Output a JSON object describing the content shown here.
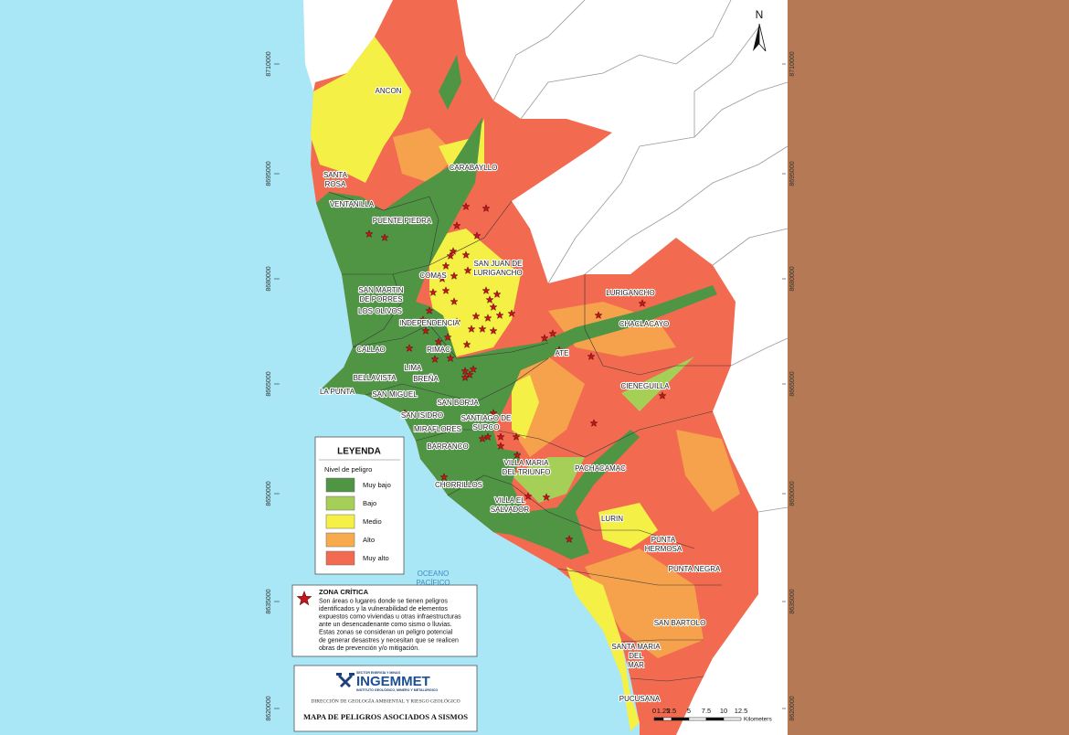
{
  "map": {
    "districts": [
      {
        "lines": [
          "ANCON"
        ]
      },
      {
        "lines": [
          "SANTA",
          "ROSA"
        ]
      },
      {
        "lines": [
          "VENTANILLA"
        ]
      },
      {
        "lines": [
          "CARABAYLLO"
        ]
      },
      {
        "lines": [
          "PUENTE PIEDRA"
        ]
      },
      {
        "lines": [
          "SAN JUAN DE",
          "LURIGANCHO"
        ]
      },
      {
        "lines": [
          "COMAS"
        ]
      },
      {
        "lines": [
          "SAN MARTIN",
          "DE PORRES"
        ]
      },
      {
        "lines": [
          "LOS OLIVOS"
        ]
      },
      {
        "lines": [
          "INDEPENDENCIA"
        ]
      },
      {
        "lines": [
          "CALLAO"
        ]
      },
      {
        "lines": [
          "RIMAC"
        ]
      },
      {
        "lines": [
          "LIMA"
        ]
      },
      {
        "lines": [
          "BREÑA"
        ]
      },
      {
        "lines": [
          "BELLAVISTA"
        ]
      },
      {
        "lines": [
          "LA PUNTA"
        ]
      },
      {
        "lines": [
          "SAN MIGUEL"
        ]
      },
      {
        "lines": [
          "SAN ISIDRO"
        ]
      },
      {
        "lines": [
          "SAN BORJA"
        ]
      },
      {
        "lines": [
          "SANTIAGO DE",
          "SURCO"
        ]
      },
      {
        "lines": [
          "MIRAFLORES"
        ]
      },
      {
        "lines": [
          "BARRANCO"
        ]
      },
      {
        "lines": [
          "CHORRILLOS"
        ]
      },
      {
        "lines": [
          "VILLA MARIA",
          "DEL TRIUNFO"
        ]
      },
      {
        "lines": [
          "VILLA EL",
          "SALVADOR"
        ]
      },
      {
        "lines": [
          "PACHACAMAC"
        ]
      },
      {
        "lines": [
          "LURIGANCHO"
        ]
      },
      {
        "lines": [
          "CHACLACAYO"
        ]
      },
      {
        "lines": [
          "ATE"
        ]
      },
      {
        "lines": [
          "CIENEGUILLA"
        ]
      },
      {
        "lines": [
          "LURIN"
        ]
      },
      {
        "lines": [
          "PUNTA",
          "HERMOSA"
        ]
      },
      {
        "lines": [
          "PUNTA NEGRA"
        ]
      },
      {
        "lines": [
          "SAN BARTOLO"
        ]
      },
      {
        "lines": [
          "SANTA MARIA",
          "DEL",
          "MAR"
        ]
      },
      {
        "lines": [
          "PUCUSANA"
        ]
      }
    ],
    "ocean": [
      "OCEANO",
      "PACÍFICO"
    ],
    "coordinates": [
      "8710000",
      "8695000",
      "8680000",
      "8665000",
      "8650000",
      "8635000",
      "8620000"
    ],
    "north": "N",
    "scale": {
      "ticks": [
        "0",
        "1.25",
        "2.5",
        "5",
        "7.5",
        "10",
        "12.5"
      ],
      "unit": "Kilometers"
    }
  },
  "legend": {
    "title": "LEYENDA",
    "subtitle": "Nivel de peligro",
    "items": [
      {
        "label": "Muy bajo",
        "color": "#4f9544"
      },
      {
        "label": "Bajo",
        "color": "#a6cf58"
      },
      {
        "label": "Medio",
        "color": "#f4f046"
      },
      {
        "label": "Alto",
        "color": "#f7ab4c"
      },
      {
        "label": "Muy alto",
        "color": "#f26a4f"
      }
    ]
  },
  "critical_zone": {
    "title": "ZONA CRÍTICA",
    "text": [
      "Son áreas o lugares donde se tienen peligros",
      "identificados y la vulnerabilidad de elementos",
      "expuestos como viviendas u otras infraestructuras",
      "ante un desencadenante como sismo o lluvias.",
      "Estas zonas se consideran un peligro potencial",
      "de generar desastres y necesitan que se realicen",
      "obras de prevención y/o mitigación."
    ]
  },
  "footer": {
    "sector": "SECTOR ENERGÍA Y MINAS",
    "logo": "INGEMMET",
    "institute": "INSTITUTO GEOLÓGICO, MINERO Y METALÚRGICO",
    "direction": "DIRECCIÓN DE GEOLOGÍA AMBIENTAL Y RIESGO GEOLÓGICO",
    "title": "MAPA DE PELIGROS ASOCIADOS A SISMOS"
  }
}
